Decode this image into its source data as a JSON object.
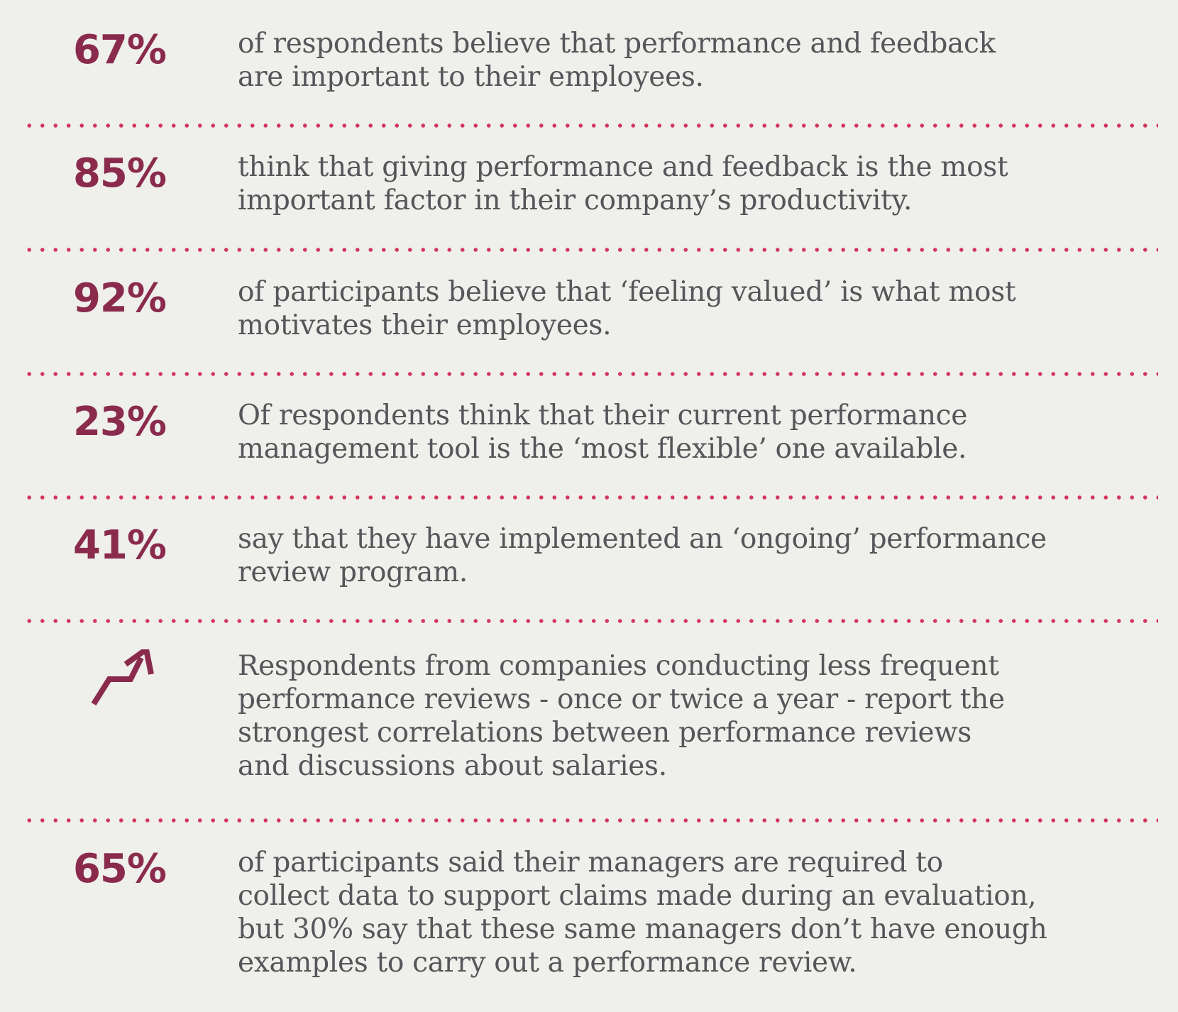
{
  "colors": {
    "background": "#efefeb",
    "accent": "#8a2b4d",
    "divider": "#d2365d",
    "text": "#58555a"
  },
  "stats": [
    {
      "value": "67%",
      "lines": [
        "of respondents believe that performance and feedback",
        "are important to their employees."
      ]
    },
    {
      "value": "85%",
      "lines": [
        "think that giving performance and feedback is the most",
        "important factor in their company’s productivity."
      ]
    },
    {
      "value": "92%",
      "lines": [
        "of participants believe that ‘feeling valued’ is what most",
        "motivates their employees."
      ]
    },
    {
      "value": "23%",
      "lines": [
        "Of respondents think that their current performance",
        "management tool is the ‘most flexible’ one available."
      ]
    },
    {
      "value": "41%",
      "lines": [
        "say that they have implemented an ‘ongoing’ performance",
        "review program."
      ]
    },
    {
      "icon": "trend-up-arrow-icon",
      "lines": [
        "Respondents from companies conducting less frequent",
        "performance reviews - once or twice a year - report the",
        "strongest correlations between performance reviews",
        "and discussions about salaries."
      ]
    },
    {
      "value": "65%",
      "lines": [
        "of participants said their managers are required to",
        "collect data to support claims made during an evaluation,",
        "but 30% say that these same managers don’t have enough",
        "examples to carry out a performance review."
      ]
    }
  ]
}
